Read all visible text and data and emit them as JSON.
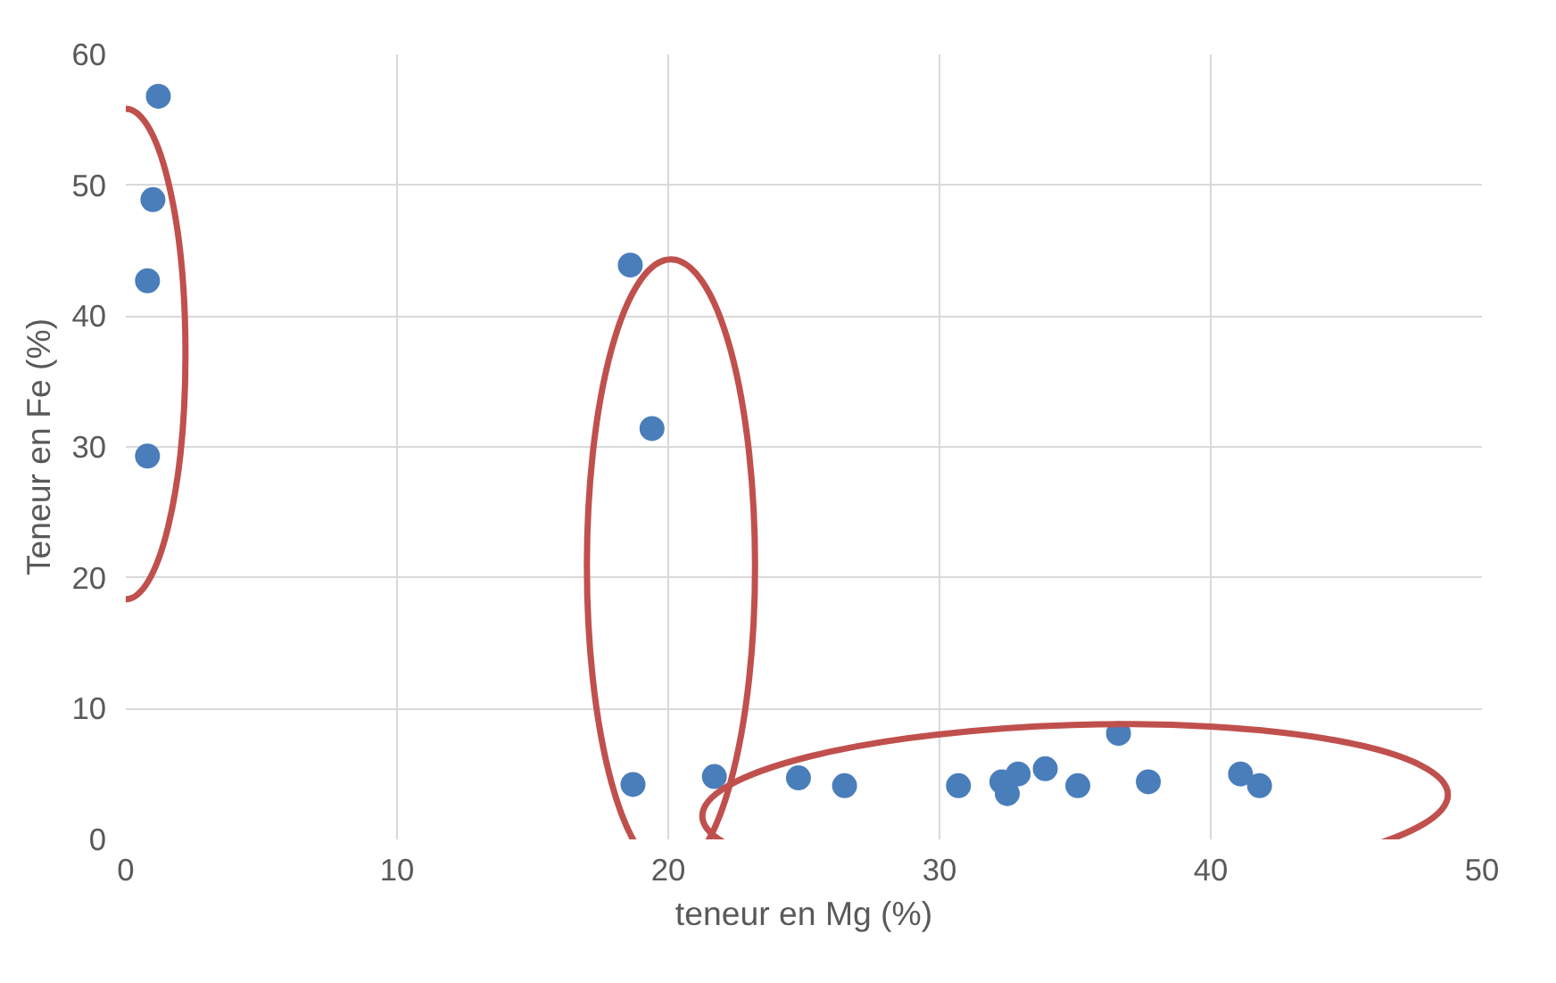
{
  "chart_data": {
    "type": "scatter",
    "xlabel": "teneur en Mg (%)",
    "ylabel": "Teneur en Fe (%)",
    "x": [
      1.2,
      1.0,
      0.8,
      0.8,
      18.6,
      19.4,
      18.7,
      21.7,
      24.8,
      26.5,
      30.7,
      32.3,
      32.5,
      32.9,
      33.9,
      35.1,
      36.6,
      37.7,
      41.1,
      41.8
    ],
    "series": [
      {
        "color": "#4a7ebb",
        "values": [
          56.8,
          48.9,
          42.7,
          29.3,
          43.9,
          31.4,
          4.2,
          4.8,
          4.7,
          4.1,
          4.1,
          4.4,
          3.5,
          5.0,
          5.4,
          4.1,
          8.1,
          4.4,
          5.0,
          4.1
        ]
      }
    ],
    "xlim": [
      0,
      50
    ],
    "ylim": [
      0,
      60
    ],
    "xticks": [
      0,
      10,
      20,
      30,
      40,
      50
    ],
    "yticks": [
      0,
      10,
      20,
      30,
      40,
      50,
      60
    ],
    "grid": true,
    "marker": "circle"
  }
}
